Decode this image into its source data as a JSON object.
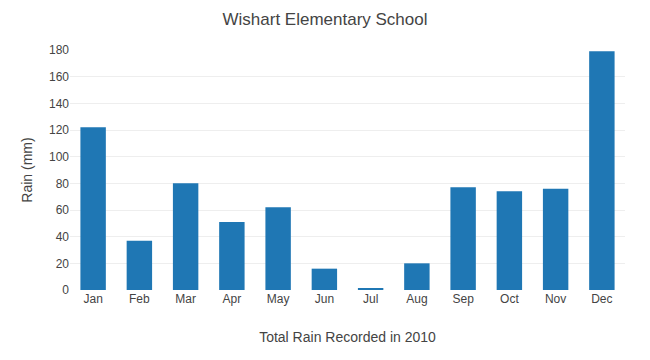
{
  "chart_data": {
    "type": "bar",
    "title": "Wishart Elementary School",
    "xlabel": "Total Rain Recorded in 2010",
    "ylabel": "Rain (mm)",
    "categories": [
      "Jan",
      "Feb",
      "Mar",
      "Apr",
      "May",
      "Jun",
      "Jul",
      "Aug",
      "Sep",
      "Oct",
      "Nov",
      "Dec"
    ],
    "values": [
      122,
      37,
      80,
      51,
      62,
      16,
      1,
      20,
      77,
      74,
      76,
      179
    ],
    "ylim": [
      0,
      180
    ],
    "yticks": [
      0,
      20,
      40,
      60,
      80,
      100,
      120,
      140,
      160,
      180
    ],
    "grid": true
  }
}
